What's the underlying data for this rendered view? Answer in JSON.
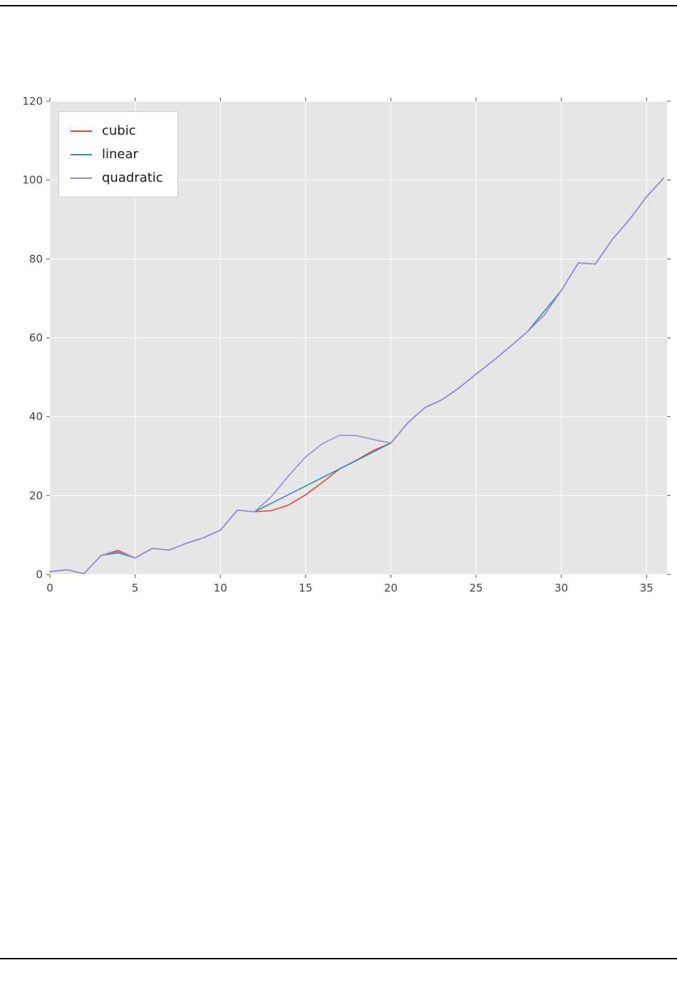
{
  "page": {
    "kind": "document page with embedded interpolation chart"
  },
  "chart_data": {
    "type": "line",
    "title": "",
    "xlabel": "",
    "ylabel": "",
    "xlim": [
      0,
      36.2
    ],
    "ylim": [
      0,
      120
    ],
    "xticks": [
      0,
      5,
      10,
      15,
      20,
      25,
      30,
      35
    ],
    "yticks": [
      0,
      20,
      40,
      60,
      80,
      100,
      120
    ],
    "grid": true,
    "legend_position": "upper-left",
    "colors": {
      "plot_background": "#e6e6e6",
      "grid": "#ffffff",
      "tick": "#555555",
      "tick_label": "#444444",
      "cubic": "#e24a33",
      "linear": "#348abd",
      "quadratic": "#988ed5"
    },
    "series": [
      {
        "name": "cubic",
        "color": "#e24a33",
        "points": [
          [
            0,
            0.7
          ],
          [
            1,
            1.2
          ],
          [
            2,
            0.2
          ],
          [
            3,
            4.8
          ],
          [
            4,
            6.1
          ],
          [
            5,
            4.2
          ],
          [
            6,
            6.6
          ],
          [
            7,
            6.2
          ],
          [
            8,
            7.9
          ],
          [
            9,
            9.3
          ],
          [
            10,
            11.2
          ],
          [
            11,
            16.3
          ],
          [
            12,
            15.9
          ],
          [
            13,
            16.2
          ],
          [
            14,
            17.6
          ],
          [
            15,
            20.2
          ],
          [
            16,
            23.4
          ],
          [
            17,
            26.8
          ],
          [
            18,
            29.0
          ],
          [
            19,
            31.5
          ],
          [
            20,
            33.3
          ],
          [
            21,
            38.5
          ],
          [
            22,
            42.3
          ],
          [
            23,
            44.3
          ],
          [
            24,
            47.3
          ],
          [
            25,
            50.8
          ],
          [
            26,
            54.2
          ],
          [
            27,
            57.8
          ],
          [
            28,
            61.5
          ],
          [
            29,
            65.8
          ],
          [
            30,
            72
          ],
          [
            31,
            79
          ],
          [
            32,
            78.7
          ],
          [
            33,
            85
          ],
          [
            34,
            90
          ],
          [
            35,
            95.8
          ],
          [
            36,
            100.5
          ]
        ]
      },
      {
        "name": "linear",
        "color": "#348abd",
        "points": [
          [
            0,
            0.7
          ],
          [
            1,
            1.2
          ],
          [
            2,
            0.2
          ],
          [
            3,
            4.8
          ],
          [
            4,
            5.5
          ],
          [
            5,
            4.2
          ],
          [
            6,
            6.6
          ],
          [
            7,
            6.2
          ],
          [
            8,
            7.9
          ],
          [
            9,
            9.3
          ],
          [
            10,
            11.2
          ],
          [
            11,
            16.3
          ],
          [
            12,
            15.9
          ],
          [
            20,
            33.3
          ],
          [
            21,
            38.5
          ],
          [
            22,
            42.3
          ],
          [
            23,
            44.3
          ],
          [
            24,
            47.3
          ],
          [
            25,
            50.8
          ],
          [
            26,
            54.2
          ],
          [
            27,
            57.8
          ],
          [
            28,
            61.5
          ],
          [
            30,
            72
          ],
          [
            31,
            79
          ],
          [
            32,
            78.7
          ],
          [
            33,
            85
          ],
          [
            34,
            90
          ],
          [
            35,
            95.8
          ],
          [
            36,
            100.5
          ]
        ]
      },
      {
        "name": "quadratic",
        "color": "#988ed5",
        "points": [
          [
            0,
            0.7
          ],
          [
            1,
            1.2
          ],
          [
            2,
            0.2
          ],
          [
            3,
            4.8
          ],
          [
            4,
            5.8
          ],
          [
            5,
            4.2
          ],
          [
            6,
            6.6
          ],
          [
            7,
            6.2
          ],
          [
            8,
            7.9
          ],
          [
            9,
            9.3
          ],
          [
            10,
            11.2
          ],
          [
            11,
            16.3
          ],
          [
            12,
            15.9
          ],
          [
            12.5,
            17.8
          ],
          [
            13,
            19.8
          ],
          [
            14,
            25.0
          ],
          [
            15,
            29.8
          ],
          [
            16,
            33.2
          ],
          [
            17,
            35.3
          ],
          [
            18,
            35.2
          ],
          [
            19,
            34.2
          ],
          [
            20,
            33.3
          ],
          [
            21,
            38.5
          ],
          [
            22,
            42.3
          ],
          [
            23,
            44.3
          ],
          [
            24,
            47.3
          ],
          [
            25,
            50.8
          ],
          [
            26,
            54.2
          ],
          [
            27,
            57.8
          ],
          [
            28,
            61.5
          ],
          [
            29,
            65.8
          ],
          [
            30,
            72
          ],
          [
            31,
            79
          ],
          [
            32,
            78.7
          ],
          [
            33,
            85
          ],
          [
            34,
            90
          ],
          [
            35,
            95.8
          ],
          [
            36,
            100.5
          ]
        ]
      }
    ]
  }
}
